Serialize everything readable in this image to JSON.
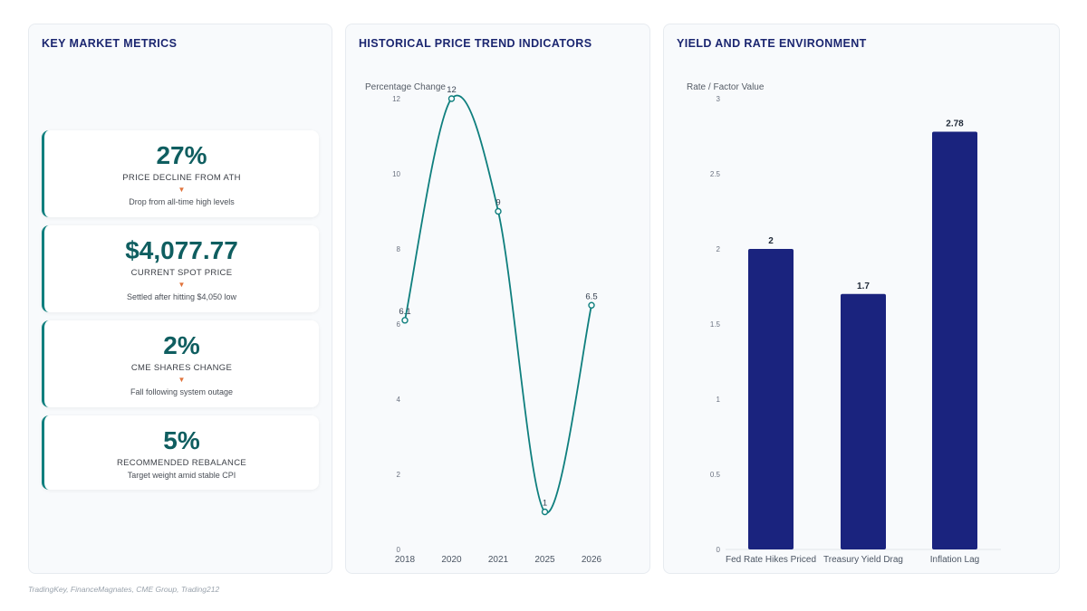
{
  "metrics_panel": {
    "title": "KEY MARKET METRICS",
    "cards": [
      {
        "value": "27%",
        "label": "PRICE DECLINE FROM ATH",
        "arrow": "▼",
        "sub": "Drop from all-time high levels"
      },
      {
        "value": "$4,077.77",
        "label": "CURRENT SPOT PRICE",
        "arrow": "▼",
        "sub": "Settled after hitting $4,050 low"
      },
      {
        "value": "2%",
        "label": "CME SHARES CHANGE",
        "arrow": "▼",
        "sub": "Fall following system outage"
      },
      {
        "value": "5%",
        "label": "RECOMMENDED REBALANCE",
        "sub": "Target weight amid stable CPI"
      }
    ]
  },
  "trend_panel": {
    "title": "HISTORICAL PRICE TREND INDICATORS"
  },
  "yield_panel": {
    "title": "YIELD AND RATE ENVIRONMENT"
  },
  "source": "TradingKey, FinanceMagnates, CME Group, Trading212",
  "colors": {
    "accent": "#0f7f7e",
    "bar": "#1a237e",
    "title": "#1b2670",
    "arrow": "#e0733b"
  },
  "chart_data": [
    {
      "type": "line",
      "title": "HISTORICAL PRICE TREND INDICATORS",
      "xlabel": "",
      "ylabel": "Percentage Change",
      "categories": [
        "2018",
        "2020",
        "2021",
        "2025",
        "2026"
      ],
      "series": [
        {
          "values": [
            6.1,
            12,
            9,
            1,
            6.5
          ]
        }
      ],
      "ylim": [
        0,
        12
      ],
      "yticks": [
        "0",
        "2",
        "4",
        "6",
        "8",
        "10",
        "12"
      ],
      "data_labels": [
        "6.1",
        "12",
        "9",
        "1",
        "6.5"
      ],
      "grid": false
    },
    {
      "type": "bar",
      "title": "YIELD AND RATE ENVIRONMENT",
      "xlabel": "",
      "ylabel": "Rate / Factor Value",
      "categories": [
        "Fed Rate Hikes Priced",
        "Treasury Yield Drag",
        "Inflation Lag"
      ],
      "values": [
        2,
        1.7,
        2.78
      ],
      "ylim": [
        0,
        3
      ],
      "yticks": [
        "0",
        "0.5",
        "1",
        "1.5",
        "2",
        "2.5",
        "3"
      ],
      "data_labels": [
        "2",
        "1.7",
        "2.78"
      ],
      "grid": false
    }
  ]
}
